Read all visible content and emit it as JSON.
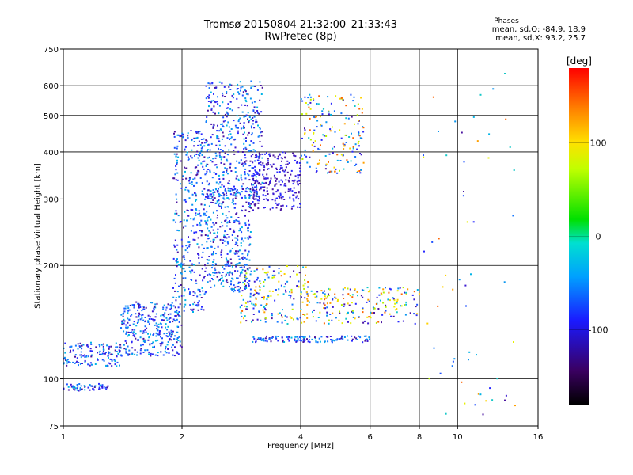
{
  "title": {
    "line1": "Tromsø 20150804 21:32:00–21:33:43",
    "line2": "RwPretec (8p)"
  },
  "phase_stats": {
    "heading": "Phases",
    "o_line": "mean, sd,O: -84.9, 18.9",
    "x_line": "mean, sd,X:  93.2, 25.7"
  },
  "colorbar": {
    "unit": "[deg]",
    "range": [
      -180,
      180
    ],
    "ticks": [
      "100",
      "0",
      "-100"
    ],
    "colormap": "rainbow"
  },
  "chart_data": {
    "type": "scatter",
    "xlabel": "Frequency [MHz]",
    "ylabel": "Stationary phase Virtual Height [km]",
    "xscale": "log",
    "yscale": "log",
    "xlim": [
      1,
      16
    ],
    "ylim": [
      75,
      750
    ],
    "xticks": [
      "1",
      "2",
      "4",
      "6",
      "8",
      "10",
      "16"
    ],
    "yticks": [
      "75",
      "100",
      "200",
      "300",
      "400",
      "500",
      "600",
      "750"
    ],
    "grid": "major",
    "series": [
      {
        "x_range": [
          1.0,
          1.3
        ],
        "y_range": [
          93,
          97
        ]
      },
      {
        "x_range": [
          1.0,
          1.4
        ],
        "y_range": [
          108,
          125
        ]
      },
      {
        "x_range": [
          1.4,
          2.0
        ],
        "y_range": [
          115,
          160
        ]
      },
      {
        "x_range": [
          1.9,
          2.3
        ],
        "y_range": [
          150,
          460
        ]
      },
      {
        "x_range": [
          2.3,
          3.0
        ],
        "y_range": [
          170,
          320
        ]
      },
      {
        "x_range": [
          2.3,
          3.2
        ],
        "y_range": [
          300,
          620
        ]
      },
      {
        "x_range": [
          3.0,
          4.0
        ],
        "y_range": [
          280,
          400
        ]
      },
      {
        "x_range": [
          4.0,
          5.8
        ],
        "y_range": [
          350,
          570
        ]
      },
      {
        "x_range": [
          2.8,
          4.2
        ],
        "y_range": [
          140,
          200
        ]
      },
      {
        "x_range": [
          3.0,
          6.0
        ],
        "y_range": [
          125,
          130
        ]
      },
      {
        "x_range": [
          4.0,
          8.0
        ],
        "y_range": [
          140,
          175
        ]
      },
      {
        "x_range": [
          8.0,
          14.0
        ],
        "y_range": [
          80,
          650
        ]
      }
    ]
  }
}
